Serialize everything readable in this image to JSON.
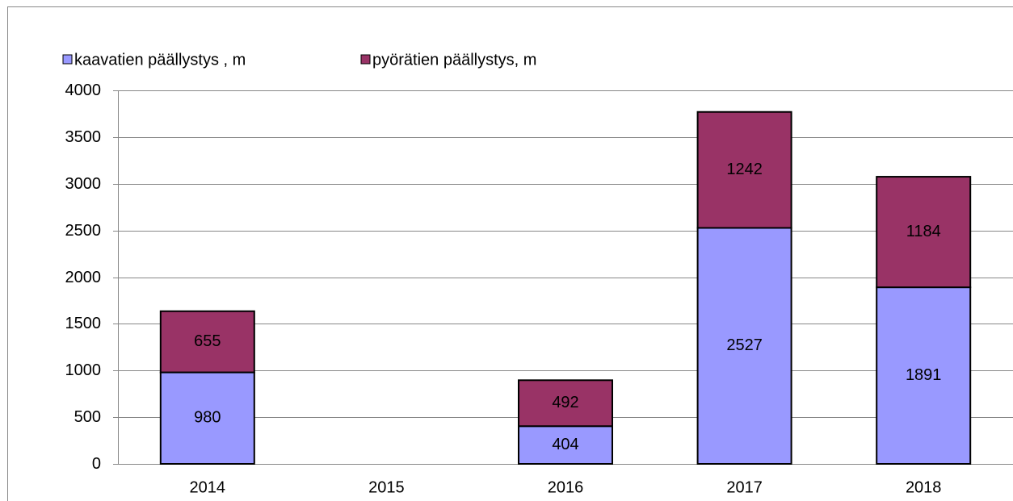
{
  "chart_data": {
    "type": "stacked_bar",
    "categories": [
      "2014",
      "2015",
      "2016",
      "2017",
      "2018"
    ],
    "series": [
      {
        "name": "kaavatien päällystys , m",
        "color": "#9999ff",
        "values": [
          980,
          null,
          404,
          2527,
          1891
        ]
      },
      {
        "name": "pyörätien päällystys, m",
        "color": "#993366",
        "values": [
          655,
          null,
          492,
          1242,
          1184
        ]
      }
    ],
    "ylim": [
      0,
      4000
    ],
    "yticks": [
      0,
      500,
      1000,
      1500,
      2000,
      2500,
      3000,
      3500,
      4000
    ],
    "grid": true,
    "legend": "top"
  }
}
